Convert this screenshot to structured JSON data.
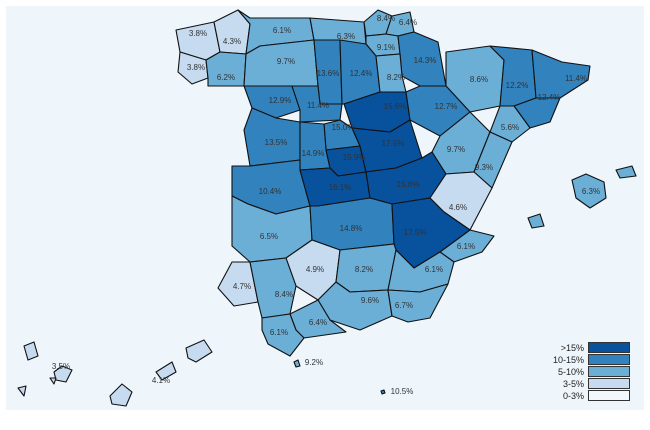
{
  "map": {
    "colors": {
      ">15%": "#08519c",
      "10-15%": "#3182bd",
      "5-10%": "#6baed6",
      "3-5%": "#c6dbef",
      "0-3%": "#f2f7fc"
    },
    "legend": [
      {
        "label": ">15%",
        "color": "#08519c"
      },
      {
        "label": "10-15%",
        "color": "#3182bd"
      },
      {
        "label": "5-10%",
        "color": "#6baed6"
      },
      {
        "label": "3-5%",
        "color": "#c6dbef"
      },
      {
        "label": "0-3%",
        "color": "#f2f7fc"
      }
    ],
    "regions": [
      {
        "value": "3.8%",
        "cls": "3-5%"
      },
      {
        "value": "4.3%",
        "cls": "3-5%"
      },
      {
        "value": "3.8%",
        "cls": "3-5%"
      },
      {
        "value": "6.2%",
        "cls": "5-10%"
      },
      {
        "value": "6.1%",
        "cls": "5-10%"
      },
      {
        "value": "6.3%",
        "cls": "5-10%"
      },
      {
        "value": "8.4%",
        "cls": "5-10%"
      },
      {
        "value": "6.4%",
        "cls": "5-10%"
      },
      {
        "value": "9.1%",
        "cls": "5-10%"
      },
      {
        "value": "14.3%",
        "cls": "10-15%"
      },
      {
        "value": "9.7%",
        "cls": "5-10%"
      },
      {
        "value": "13.6%",
        "cls": "10-15%"
      },
      {
        "value": "12.4%",
        "cls": "10-15%"
      },
      {
        "value": "8.2%",
        "cls": "5-10%"
      },
      {
        "value": "8.6%",
        "cls": "5-10%"
      },
      {
        "value": "12.2%",
        "cls": "10-15%"
      },
      {
        "value": "11.4%",
        "cls": "10-15%"
      },
      {
        "value": "12.9%",
        "cls": "10-15%"
      },
      {
        "value": "11.4%",
        "cls": "10-15%"
      },
      {
        "value": "15.6%",
        "cls": ">15%"
      },
      {
        "value": "12.7%",
        "cls": "10-15%"
      },
      {
        "value": "12.4%",
        "cls": "10-15%"
      },
      {
        "value": "15.0%",
        "cls": "10-15%"
      },
      {
        "value": "5.6%",
        "cls": "5-10%"
      },
      {
        "value": "13.5%",
        "cls": "10-15%"
      },
      {
        "value": "14.9%",
        "cls": "10-15%"
      },
      {
        "value": "15.9%",
        "cls": ">15%"
      },
      {
        "value": "17.5%",
        "cls": ">15%"
      },
      {
        "value": "9.7%",
        "cls": "5-10%"
      },
      {
        "value": "9.3%",
        "cls": "5-10%"
      },
      {
        "value": "10.4%",
        "cls": "10-15%"
      },
      {
        "value": "16.1%",
        "cls": ">15%"
      },
      {
        "value": "15.6%",
        "cls": ">15%"
      },
      {
        "value": "4.6%",
        "cls": "3-5%"
      },
      {
        "value": "6.3%",
        "cls": "5-10%"
      },
      {
        "value": "6.5%",
        "cls": "5-10%"
      },
      {
        "value": "14.8%",
        "cls": "10-15%"
      },
      {
        "value": "17.5%",
        "cls": ">15%"
      },
      {
        "value": "6.1%",
        "cls": "5-10%"
      },
      {
        "value": "4.9%",
        "cls": "3-5%"
      },
      {
        "value": "8.2%",
        "cls": "5-10%"
      },
      {
        "value": "6.1%",
        "cls": "5-10%"
      },
      {
        "value": "4.7%",
        "cls": "3-5%"
      },
      {
        "value": "8.4%",
        "cls": "5-10%"
      },
      {
        "value": "9.6%",
        "cls": "5-10%"
      },
      {
        "value": "6.7%",
        "cls": "5-10%"
      },
      {
        "value": "6.4%",
        "cls": "5-10%"
      },
      {
        "value": "6.1%",
        "cls": "5-10%"
      },
      {
        "value": "9.2%",
        "cls": "5-10%"
      },
      {
        "value": "3.5%",
        "cls": "3-5%"
      },
      {
        "value": "4.1%",
        "cls": "3-5%"
      },
      {
        "value": "10.5%",
        "cls": "10-15%"
      }
    ]
  }
}
